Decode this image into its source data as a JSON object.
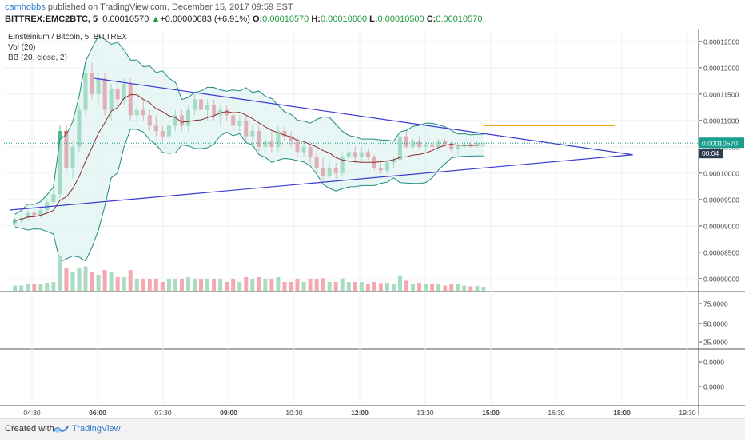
{
  "header": {
    "user": "camhobbs",
    "published": "published on TradingView.com, December 15, 2017 09:59 EST",
    "symbol": "BITTREX:EMC2BTC, 5",
    "price": "0.00010570",
    "change_arrow": "▲",
    "change": "+0.00000683 (+6.91%)",
    "o_label": "O:",
    "o_value": "0.00010570",
    "h_label": "H:",
    "h_value": "0.00010600",
    "l_label": "L:",
    "l_value": "0.00010500",
    "c_label": "C:",
    "c_value": "0.00010570"
  },
  "legend": [
    "Einsteinium / Bitcoin, 5, BITTREX",
    "Vol (20)",
    "BB (20, close, 2)"
  ],
  "footer": {
    "created": "Created with",
    "brand": "TradingView"
  },
  "colors": {
    "up": "#53b987",
    "down": "#eb4d5c",
    "trendline": "#3b3bd1",
    "target": "#f5a623",
    "bb_band": "#1f8a80",
    "bb_basis": "#8b2a2a",
    "price_label": "#1a9e8f"
  },
  "chart_data": {
    "type": "candlestick",
    "title": "Einsteinium / Bitcoin, 5, BITTREX",
    "x_ticks": [
      "04:30",
      "06:00",
      "07:30",
      "09:00",
      "10:30",
      "12:00",
      "13:30",
      "15:00",
      "16:30",
      "18:00",
      "19:30"
    ],
    "x_ticks_bold": [
      "06:00",
      "09:00",
      "12:00",
      "15:00",
      "18:00"
    ],
    "price_axis": {
      "ticks": [
        "0.00012500",
        "0.00012000",
        "0.00011500",
        "0.00011000",
        "0.00010500",
        "0.00010000",
        "0.00009500",
        "0.00009000",
        "0.00008500",
        "0.00008000"
      ],
      "ylim": [
        7.77e-05,
        0.0001274
      ]
    },
    "last_price_label": "0.00010570",
    "countdown_label": "00:04",
    "last_price": 0.0001057,
    "candles_ohlc_approx": [
      [
        9.05,
        9.15,
        9.0,
        9.1
      ],
      [
        9.1,
        9.2,
        9.05,
        9.15
      ],
      [
        9.15,
        9.3,
        9.1,
        9.25
      ],
      [
        9.25,
        9.35,
        9.15,
        9.2
      ],
      [
        9.2,
        9.35,
        9.15,
        9.3
      ],
      [
        9.3,
        9.5,
        9.25,
        9.45
      ],
      [
        9.45,
        9.7,
        9.4,
        9.6
      ],
      [
        9.6,
        10.9,
        9.5,
        10.8
      ],
      [
        10.8,
        10.9,
        10.0,
        10.1
      ],
      [
        10.1,
        10.6,
        9.9,
        10.5
      ],
      [
        10.5,
        11.3,
        10.4,
        11.2
      ],
      [
        11.2,
        12.05,
        11.1,
        11.9
      ],
      [
        11.9,
        12.1,
        11.4,
        11.5
      ],
      [
        11.5,
        11.9,
        11.3,
        11.8
      ],
      [
        11.8,
        11.9,
        11.1,
        11.2
      ],
      [
        11.2,
        11.7,
        11.0,
        11.6
      ],
      [
        11.6,
        11.8,
        11.3,
        11.4
      ],
      [
        11.4,
        11.8,
        11.3,
        11.7
      ],
      [
        11.7,
        11.8,
        11.0,
        11.1
      ],
      [
        11.1,
        11.3,
        10.9,
        11.2
      ],
      [
        11.2,
        11.4,
        11.0,
        11.1
      ],
      [
        11.1,
        11.2,
        10.8,
        10.9
      ],
      [
        10.9,
        11.1,
        10.7,
        10.8
      ],
      [
        10.8,
        10.9,
        10.6,
        10.7
      ],
      [
        10.7,
        11.0,
        10.6,
        10.9
      ],
      [
        10.9,
        11.2,
        10.8,
        11.1
      ],
      [
        11.1,
        11.2,
        10.8,
        10.9
      ],
      [
        10.9,
        11.3,
        10.8,
        11.2
      ],
      [
        11.2,
        11.5,
        11.1,
        11.4
      ],
      [
        11.4,
        11.5,
        11.1,
        11.2
      ],
      [
        11.2,
        11.4,
        11.0,
        11.3
      ],
      [
        11.3,
        11.4,
        11.0,
        11.1
      ],
      [
        11.1,
        11.3,
        10.9,
        11.2
      ],
      [
        11.2,
        11.3,
        11.0,
        11.1
      ],
      [
        11.1,
        11.2,
        10.8,
        10.9
      ],
      [
        10.9,
        11.1,
        10.8,
        11.0
      ],
      [
        11.0,
        11.1,
        10.6,
        10.7
      ],
      [
        10.7,
        10.9,
        10.5,
        10.8
      ],
      [
        10.8,
        10.9,
        10.4,
        10.5
      ],
      [
        10.5,
        10.7,
        10.3,
        10.6
      ],
      [
        10.6,
        10.8,
        10.4,
        10.5
      ],
      [
        10.5,
        10.9,
        10.4,
        10.8
      ],
      [
        10.8,
        10.9,
        10.6,
        10.7
      ],
      [
        10.7,
        10.8,
        10.5,
        10.6
      ],
      [
        10.6,
        10.7,
        10.3,
        10.4
      ],
      [
        10.4,
        10.6,
        10.3,
        10.5
      ],
      [
        10.5,
        10.6,
        10.2,
        10.3
      ],
      [
        10.3,
        10.4,
        10.0,
        10.1
      ],
      [
        10.1,
        10.3,
        9.85,
        9.95
      ],
      [
        9.95,
        10.2,
        9.9,
        10.1
      ],
      [
        10.1,
        10.2,
        9.9,
        10.0
      ],
      [
        10.0,
        10.4,
        9.95,
        10.3
      ],
      [
        10.3,
        10.5,
        10.2,
        10.4
      ],
      [
        10.4,
        10.5,
        10.2,
        10.3
      ],
      [
        10.3,
        10.5,
        10.2,
        10.4
      ],
      [
        10.4,
        10.45,
        10.25,
        10.3
      ],
      [
        10.3,
        10.35,
        10.05,
        10.1
      ],
      [
        10.1,
        10.2,
        9.98,
        10.05
      ],
      [
        10.05,
        10.25,
        10.0,
        10.2
      ],
      [
        10.2,
        10.3,
        10.1,
        10.25
      ],
      [
        10.25,
        10.75,
        10.2,
        10.7
      ],
      [
        10.7,
        10.8,
        10.45,
        10.5
      ],
      [
        10.5,
        10.65,
        10.45,
        10.6
      ],
      [
        10.6,
        10.7,
        10.45,
        10.5
      ],
      [
        10.5,
        10.6,
        10.4,
        10.55
      ],
      [
        10.55,
        10.65,
        10.45,
        10.5
      ],
      [
        10.5,
        10.65,
        10.45,
        10.6
      ],
      [
        10.6,
        10.65,
        10.5,
        10.55
      ],
      [
        10.55,
        10.6,
        10.4,
        10.45
      ],
      [
        10.45,
        10.55,
        10.35,
        10.5
      ],
      [
        10.5,
        10.6,
        10.45,
        10.55
      ],
      [
        10.55,
        10.6,
        10.48,
        10.52
      ],
      [
        10.52,
        10.62,
        10.48,
        10.57
      ],
      [
        10.57,
        10.6,
        10.5,
        10.57
      ]
    ],
    "candles_scale": 1e-05,
    "trendlines": [
      {
        "name": "upper",
        "from": [
          "05:55",
          0.000118
        ],
        "to": [
          "18:15",
          0.0001035
        ]
      },
      {
        "name": "lower",
        "from": [
          "04:00",
          9.3e-05
        ],
        "to": [
          "18:15",
          0.0001035
        ]
      }
    ],
    "target_line": {
      "from": "14:50",
      "to": "17:50",
      "value": 0.000109
    },
    "rsi_ticks": [
      "75.0000",
      "50.0000",
      "25.0000"
    ],
    "macd_ticks": [
      "0.0000",
      "0.0000"
    ],
    "grid": true
  }
}
